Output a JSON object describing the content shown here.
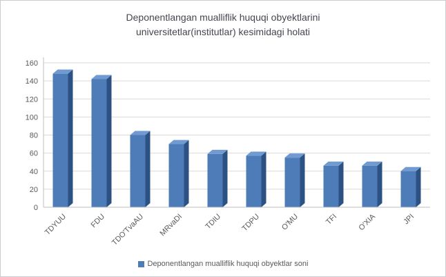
{
  "chart": {
    "title_line1": "Deponentlangan mualliflik huquqi obyektlarini",
    "title_line2": "universitetlar(institutlar) kesimidagi holati",
    "legend_label": "Deponentlangan mualliflik huquqi obyektlar soni"
  },
  "chart_data": {
    "type": "bar",
    "title": "Deponentlangan mualliflik huquqi obyektlarini universitetlar(institutlar) kesimidagi holati",
    "categories": [
      "TDYUU",
      "FDU",
      "TDO'TvaAU",
      "MRvaDI",
      "TDIU",
      "TDPU",
      "O'MU",
      "TFI",
      "O'XIA",
      "JPI"
    ],
    "values": [
      148,
      142,
      80,
      70,
      59,
      57,
      55,
      46,
      46,
      40
    ],
    "series_name": "Deponentlangan mualliflik huquqi obyektlar soni",
    "xlabel": "",
    "ylabel": "",
    "ylim": [
      0,
      160
    ],
    "ytick_interval": 20,
    "grid": true,
    "legend_position": "bottom",
    "bar_style": "3d",
    "colors": {
      "bar_front": "#4d7cb8",
      "bar_side": "#2c5283",
      "bar_top": "#719bd0",
      "grid_line": "#d9d9d9",
      "axis_line": "#bfbfbf",
      "axis_text": "#595959",
      "title_text": "#454550"
    }
  }
}
